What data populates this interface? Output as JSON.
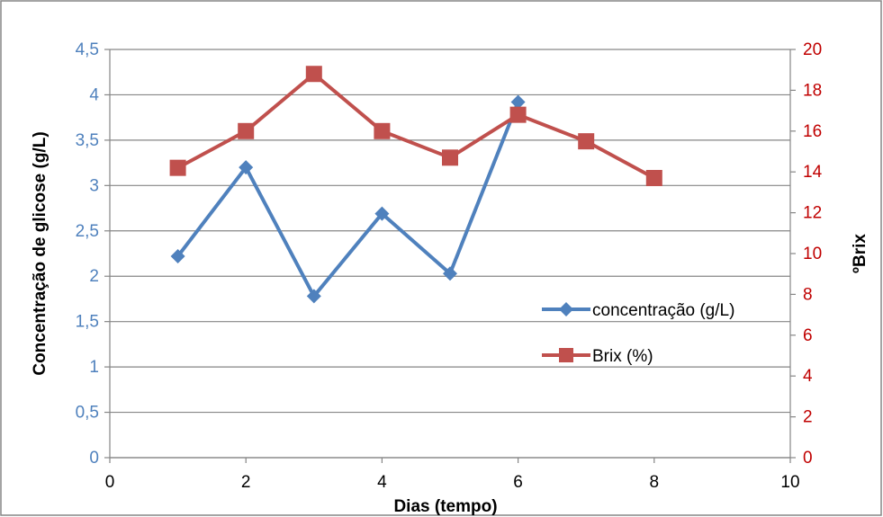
{
  "chart_data": {
    "type": "line",
    "xlabel": "Dias (tempo)",
    "ylabel_left": "Concentração de glicose (g/L)",
    "ylabel_right": "ºBrix",
    "xlim": [
      0,
      10
    ],
    "xticks": [
      0,
      2,
      4,
      6,
      8,
      10
    ],
    "xtick_labels": [
      "0",
      "2",
      "4",
      "6",
      "8",
      "10"
    ],
    "ylim_left": [
      0,
      4.5
    ],
    "yticks_left": [
      0,
      0.5,
      1,
      1.5,
      2,
      2.5,
      3,
      3.5,
      4,
      4.5
    ],
    "ytick_labels_left": [
      "0",
      "0,5",
      "1",
      "1,5",
      "2",
      "2,5",
      "3",
      "3,5",
      "4",
      "4,5"
    ],
    "ylim_right": [
      0,
      20
    ],
    "yticks_right": [
      0,
      2,
      4,
      6,
      8,
      10,
      12,
      14,
      16,
      18,
      20
    ],
    "ytick_labels_right": [
      "0",
      "2",
      "4",
      "6",
      "8",
      "10",
      "12",
      "14",
      "16",
      "18",
      "20"
    ],
    "grid": true,
    "legend_position": "right",
    "series": [
      {
        "name": "concentração (g/L)",
        "axis": "left",
        "marker": "diamond",
        "color": "#4f81bd",
        "x": [
          1,
          2,
          3,
          4,
          5,
          6
        ],
        "y": [
          2.22,
          3.2,
          1.78,
          2.69,
          2.03,
          3.92
        ]
      },
      {
        "name": "Brix (%)",
        "axis": "right",
        "marker": "square",
        "color": "#c0504d",
        "x": [
          1,
          2,
          3,
          4,
          5,
          6,
          7,
          8
        ],
        "y": [
          14.2,
          16.0,
          18.8,
          16.0,
          14.7,
          16.8,
          15.5,
          13.7
        ]
      }
    ],
    "colors": {
      "left_axis": "#4f81bd",
      "right_axis": "#c00000",
      "grid": "#868686",
      "frame": "#868686"
    }
  }
}
